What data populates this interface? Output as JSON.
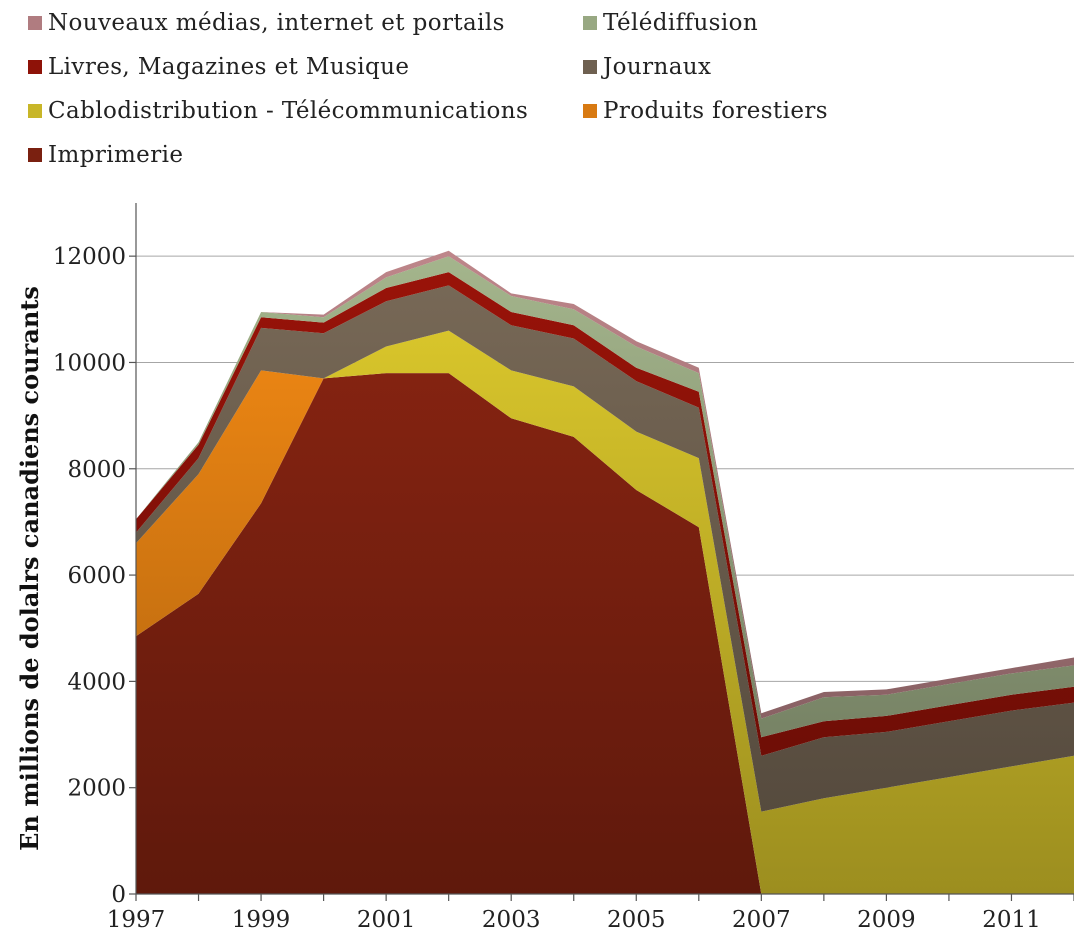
{
  "chart_data": {
    "type": "area",
    "stacked": true,
    "x": [
      1997,
      1998,
      1999,
      2000,
      2001,
      2002,
      2003,
      2004,
      2005,
      2006,
      2007,
      2008,
      2009,
      2010,
      2011,
      2012
    ],
    "xticks": [
      "1997",
      "1999",
      "2001",
      "2003",
      "2005",
      "2007",
      "2009",
      "2011"
    ],
    "yticks": [
      "0",
      "2000",
      "4000",
      "6000",
      "8000",
      "10000",
      "12000"
    ],
    "ylim": [
      0,
      13000
    ],
    "xlabel": "",
    "ylabel": "En millions de dolalrs canadiens courants",
    "grid": "horizontal",
    "legend_position": "top",
    "series": [
      {
        "name": "Imprimerie",
        "color": "#7a2010",
        "values": [
          4850,
          5650,
          7350,
          9700,
          9800,
          9800,
          8950,
          8600,
          7600,
          6900,
          0,
          0,
          0,
          0,
          0,
          0
        ]
      },
      {
        "name": "Produits forestiers",
        "color": "#d87a12",
        "values": [
          1750,
          2250,
          2500,
          0,
          0,
          0,
          0,
          0,
          0,
          0,
          0,
          0,
          0,
          0,
          0,
          0
        ]
      },
      {
        "name": "Cablodistribution - Télécommunications",
        "color": "#c8b628",
        "values": [
          0,
          0,
          0,
          0,
          500,
          800,
          900,
          950,
          1100,
          1300,
          1550,
          1800,
          2000,
          2200,
          2400,
          2600
        ]
      },
      {
        "name": "Journaux",
        "color": "#6e6050",
        "values": [
          200,
          300,
          800,
          850,
          850,
          850,
          850,
          900,
          950,
          950,
          1050,
          1150,
          1050,
          1050,
          1050,
          1000
        ]
      },
      {
        "name": "Livres, Magazines et Musique",
        "color": "#8e1208",
        "values": [
          250,
          250,
          200,
          200,
          250,
          250,
          250,
          250,
          250,
          300,
          350,
          300,
          300,
          300,
          300,
          300
        ]
      },
      {
        "name": "Télédiffusion",
        "color": "#98a882",
        "values": [
          0,
          50,
          100,
          100,
          200,
          300,
          300,
          300,
          400,
          350,
          350,
          450,
          400,
          400,
          400,
          400
        ]
      },
      {
        "name": "Nouveaux médias, internet et portails",
        "color": "#b07c80",
        "values": [
          0,
          0,
          0,
          50,
          100,
          100,
          50,
          100,
          100,
          100,
          100,
          100,
          100,
          100,
          100,
          150
        ]
      }
    ],
    "legend_entries": [
      {
        "label": "Nouveaux médias, internet et portails",
        "color": "#b07c80"
      },
      {
        "label": "Télédiffusion",
        "color": "#98a882"
      },
      {
        "label": "Livres, Magazines et Musique",
        "color": "#8e1208"
      },
      {
        "label": "Journaux",
        "color": "#6e6050"
      },
      {
        "label": "Cablodistribution - Télécommunications",
        "color": "#c8b628"
      },
      {
        "label": "Produits forestiers",
        "color": "#d87a12"
      },
      {
        "label": "Imprimerie",
        "color": "#7a2010"
      }
    ]
  }
}
